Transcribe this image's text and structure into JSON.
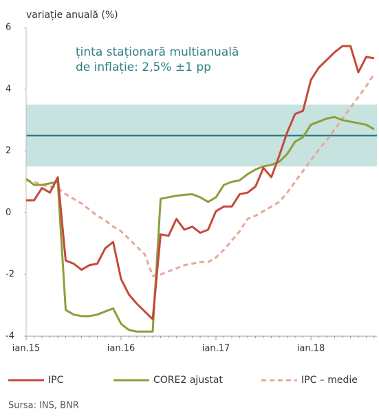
{
  "chart_data": {
    "type": "line",
    "y_axis_label": "variație anuală (%)",
    "annotation": [
      "ținta staționară multianuală",
      "de inflație: 2,5% ±1 pp"
    ],
    "target": 2.5,
    "target_band": [
      1.5,
      3.5
    ],
    "band_color": "#c6e3e0",
    "target_color": "#2f7e85",
    "categories": [
      "ian.15",
      null,
      null,
      null,
      null,
      null,
      null,
      null,
      null,
      null,
      null,
      null,
      "ian.16",
      null,
      null,
      null,
      null,
      null,
      null,
      null,
      null,
      null,
      null,
      null,
      "ian.17",
      null,
      null,
      null,
      null,
      null,
      null,
      null,
      null,
      null,
      null,
      null,
      "ian.18",
      null,
      null,
      null,
      null,
      null,
      null,
      null,
      null
    ],
    "series": [
      {
        "name": "IPC",
        "color": "#c44a3a",
        "dashed": false,
        "values": [
          0.4,
          0.4,
          0.8,
          0.65,
          1.15,
          -1.55,
          -1.65,
          -1.85,
          -1.7,
          -1.65,
          -1.15,
          -0.95,
          -2.15,
          -2.65,
          -2.95,
          -3.2,
          -3.45,
          -0.7,
          -0.75,
          -0.2,
          -0.55,
          -0.45,
          -0.65,
          -0.55,
          0.05,
          0.2,
          0.2,
          0.6,
          0.65,
          0.85,
          1.45,
          1.15,
          1.85,
          2.6,
          3.2,
          3.3,
          4.3,
          4.7,
          4.95,
          5.2,
          5.4,
          5.4,
          4.55,
          5.05,
          5.0
        ]
      },
      {
        "name": "CORE2 ajustat",
        "color": "#8c9f3a",
        "dashed": false,
        "values": [
          1.1,
          0.9,
          0.9,
          0.95,
          1.0,
          -3.15,
          -3.3,
          -3.35,
          -3.35,
          -3.3,
          -3.2,
          -3.1,
          -3.6,
          -3.8,
          -3.85,
          -3.85,
          -3.85,
          0.45,
          0.5,
          0.55,
          0.58,
          0.6,
          0.5,
          0.35,
          0.5,
          0.9,
          1.0,
          1.05,
          1.25,
          1.4,
          1.5,
          1.55,
          1.65,
          1.9,
          2.3,
          2.45,
          2.85,
          2.95,
          3.05,
          3.1,
          3.0,
          2.95,
          2.9,
          2.85,
          2.7
        ]
      },
      {
        "name": "IPC – medie",
        "color": "#e6a898",
        "dashed": true,
        "values": [
          1.05,
          1.0,
          0.9,
          0.85,
          0.8,
          0.6,
          0.45,
          0.3,
          0.1,
          -0.1,
          -0.25,
          -0.45,
          -0.6,
          -0.85,
          -1.1,
          -1.35,
          -2.05,
          -2.0,
          -1.9,
          -1.8,
          -1.7,
          -1.65,
          -1.6,
          -1.6,
          -1.45,
          -1.2,
          -0.9,
          -0.6,
          -0.2,
          -0.1,
          0.05,
          0.2,
          0.35,
          0.65,
          1.0,
          1.35,
          1.7,
          2.05,
          2.35,
          2.7,
          3.05,
          3.4,
          3.75,
          4.1,
          4.5
        ]
      }
    ],
    "ylim": [
      -4,
      6
    ],
    "yticks": [
      -4,
      -2,
      0,
      2,
      4,
      6
    ],
    "source": "Sursa: INS, BNR"
  }
}
